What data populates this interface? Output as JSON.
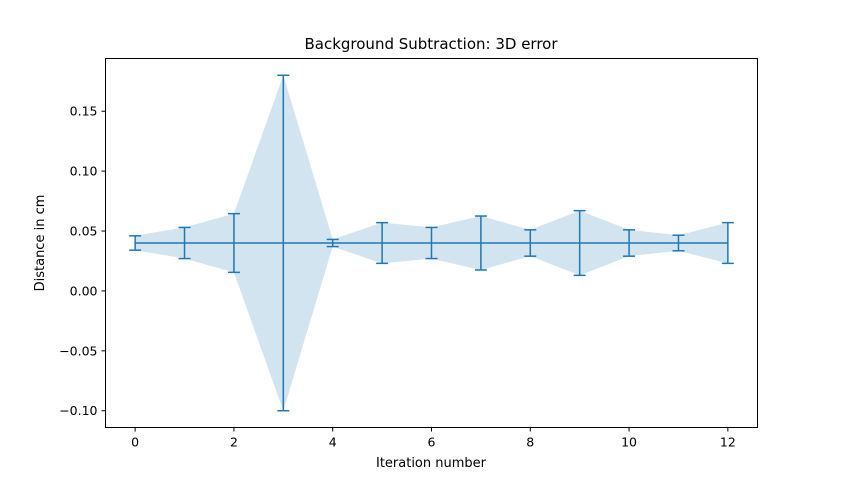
{
  "chart_data": {
    "type": "line",
    "title": "Background Subtraction: 3D error",
    "xlabel": "Iteration number",
    "ylabel": "Distance in cm",
    "x": [
      0,
      1,
      2,
      3,
      4,
      5,
      6,
      7,
      8,
      9,
      10,
      11,
      12
    ],
    "series": [
      {
        "values": [
          0.04,
          0.04,
          0.04,
          0.04,
          0.04,
          0.04,
          0.04,
          0.04,
          0.04,
          0.04,
          0.04,
          0.04,
          0.04
        ],
        "errors": [
          0.006,
          0.013,
          0.0245,
          0.14,
          0.003,
          0.017,
          0.013,
          0.0225,
          0.011,
          0.027,
          0.011,
          0.0065,
          0.017
        ],
        "color": "#1f77b4",
        "fill_color": "#1f77b4",
        "fill_opacity": 0.2
      }
    ],
    "xlim": [
      -0.6,
      12.6
    ],
    "ylim": [
      -0.114,
      0.194
    ],
    "xticks": [
      0,
      2,
      4,
      6,
      8,
      10,
      12
    ],
    "xtick_labels": [
      "0",
      "2",
      "4",
      "6",
      "8",
      "10",
      "12"
    ],
    "yticks": [
      -0.1,
      -0.05,
      0.0,
      0.05,
      0.1,
      0.15
    ],
    "ytick_labels": [
      "−0.10",
      "−0.05",
      "0.00",
      "0.05",
      "0.10",
      "0.15"
    ],
    "grid": false,
    "legend": "none"
  }
}
